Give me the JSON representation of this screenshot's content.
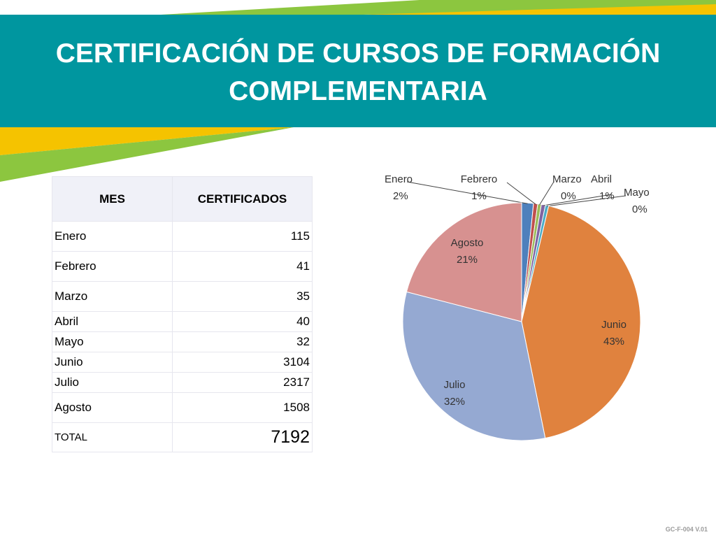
{
  "slide": {
    "title_line1": "CERTIFICACIÓN DE CURSOS DE FORMACIÓN",
    "title_line2": "COMPLEMENTARIA",
    "footer_code": "GC-F-004 V.01"
  },
  "colors": {
    "banner": "#00969f",
    "accent_yellow": "#f5c300",
    "accent_green": "#8cc63f",
    "enero": "#4e80bc",
    "febrero": "#c0504d",
    "marzo": "#9bbb59",
    "abril": "#8064a2",
    "mayo": "#4bacc6",
    "junio": "#e0823e",
    "julio": "#95a9d2",
    "agosto": "#d79190"
  },
  "table": {
    "header_mes": "MES",
    "header_cert": "CERTIFICADOS",
    "rows": [
      {
        "mes": "Enero",
        "value": "115"
      },
      {
        "mes": "Febrero",
        "value": "41"
      },
      {
        "mes": "Marzo",
        "value": "35"
      },
      {
        "mes": "Abril",
        "value": "40"
      },
      {
        "mes": "Mayo",
        "value": "32"
      },
      {
        "mes": "Junio",
        "value": "3104"
      },
      {
        "mes": "Julio",
        "value": "2317"
      },
      {
        "mes": "Agosto",
        "value": "1508"
      }
    ],
    "total_label": "TOTAL",
    "total_value": "7192"
  },
  "chart_data": {
    "type": "pie",
    "title": "",
    "categories": [
      "Enero",
      "Febrero",
      "Marzo",
      "Abril",
      "Mayo",
      "Junio",
      "Julio",
      "Agosto"
    ],
    "values": [
      115,
      41,
      35,
      40,
      32,
      3104,
      2317,
      1508
    ],
    "labels": [
      "2%",
      "1%",
      "0%",
      "1%",
      "0%",
      "43%",
      "32%",
      "21%"
    ],
    "colors": [
      "#4e80bc",
      "#c0504d",
      "#9bbb59",
      "#8064a2",
      "#4bacc6",
      "#e0823e",
      "#95a9d2",
      "#d79190"
    ],
    "start_angle": "12 o'clock",
    "direction": "clockwise",
    "legend": "none",
    "label_style": "category name and percentage; small slices labeled outside with leader lines"
  }
}
